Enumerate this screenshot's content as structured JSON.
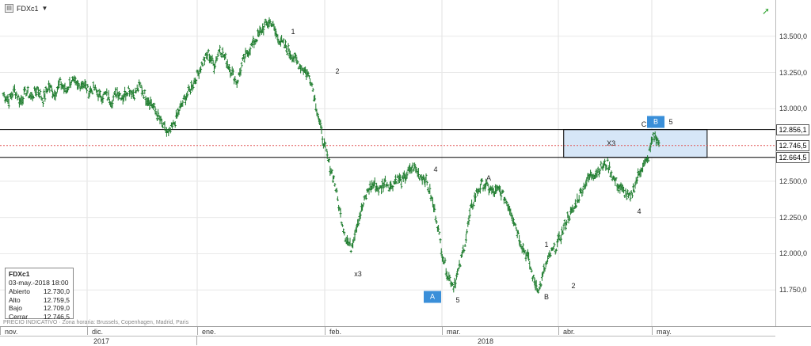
{
  "header": {
    "symbol": "FDXc1",
    "symbol_icon": "chart-icon",
    "trend_icon": "trend-up-icon"
  },
  "info_box": {
    "symbol": "FDXc1",
    "datetime": "03-may.-2018 18:00",
    "rows": [
      {
        "label": "Abierto",
        "value": "12.730,0"
      },
      {
        "label": "Alto",
        "value": "12.759,5"
      },
      {
        "label": "Bajo",
        "value": "12.709,0"
      },
      {
        "label": "Cerrar",
        "value": "12.746,5"
      }
    ]
  },
  "footer_note": "PRECIO INDICATIVO · Zona horaria: Brussels, Copenhagen, Madrid, Paris",
  "chart_data": {
    "type": "line",
    "series_style": "ohlc-bars",
    "x_axis": {
      "months": [
        "nov.",
        "dic.",
        "ene.",
        "feb.",
        "mar.",
        "abr.",
        "may."
      ],
      "years": [
        "2017",
        "2018"
      ]
    },
    "y_axis": {
      "ylim": [
        11500,
        13750
      ],
      "ticks": [
        "13.500,0",
        "13.250,0",
        "13.000,0",
        "12.500,0",
        "12.250,0",
        "12.000,0",
        "11.750,0"
      ],
      "tick_values": [
        13500,
        13250,
        13000,
        12500,
        12250,
        12000,
        11750
      ],
      "highlighted": [
        {
          "value": 12856.1,
          "label": "12.856,1"
        },
        {
          "value": 12746.5,
          "label": "12.746,5"
        },
        {
          "value": 12664.5,
          "label": "12.664,5"
        }
      ]
    },
    "horizontal_lines": [
      {
        "value": 12856.1,
        "style": "solid",
        "color": "#000000"
      },
      {
        "value": 12664.5,
        "style": "solid",
        "color": "#000000"
      },
      {
        "value": 12746.5,
        "style": "dotted",
        "color": "#e05050"
      }
    ],
    "zone": {
      "label": "X3",
      "y_top": 12856.1,
      "y_bottom": 12664.5,
      "x_start": 0.727,
      "x_end": 0.912,
      "fill": "#d6e6f7"
    },
    "series": [
      {
        "values": [
          13100,
          13060,
          13130,
          13050,
          13120,
          13080,
          13140,
          13060,
          13160,
          13100,
          13180,
          13120,
          13200,
          13150,
          13180,
          13120,
          13140,
          13080,
          13100,
          13050,
          13120,
          13080,
          13140,
          13100,
          13160,
          13080,
          13040,
          12960,
          12880,
          12820,
          12900,
          13000,
          13080,
          13150,
          13230,
          13320,
          13380,
          13300,
          13420,
          13340,
          13260,
          13180,
          13320,
          13400,
          13460,
          13520,
          13580,
          13600,
          13500,
          13450,
          13400,
          13350,
          13300,
          13260,
          13200,
          13000,
          12800,
          12640,
          12520,
          12300,
          12120,
          12040,
          12200,
          12320,
          12440,
          12480,
          12440,
          12500,
          12460,
          12520,
          12500,
          12560,
          12600,
          12540,
          12520,
          12400,
          12240,
          12000,
          11850,
          11780,
          11900,
          12080,
          12300,
          12420,
          12480,
          12460,
          12420,
          12440,
          12380,
          12300,
          12180,
          12050,
          11980,
          11820,
          11750,
          11900,
          12000,
          12050,
          12140,
          12250,
          12300,
          12400,
          12480,
          12540,
          12560,
          12600,
          12620,
          12520,
          12460,
          12420,
          12380,
          12500,
          12600,
          12640,
          12820,
          12760
        ],
        "color": "#1a7a2a"
      }
    ],
    "wave_labels": [
      {
        "text": "1",
        "x": 370,
        "y": 13530
      },
      {
        "text": "2",
        "x": 426,
        "y": 13260
      },
      {
        "text": "4",
        "x": 550,
        "y": 12580
      },
      {
        "text": "A",
        "x": 617,
        "y": 12520
      },
      {
        "text": "x3",
        "x": 452,
        "y": 11860
      },
      {
        "text": "5",
        "x": 578,
        "y": 11680
      },
      {
        "text": "1",
        "x": 690,
        "y": 12060
      },
      {
        "text": "B",
        "x": 690,
        "y": 11700
      },
      {
        "text": "2",
        "x": 724,
        "y": 11780
      },
      {
        "text": "4",
        "x": 807,
        "y": 12290
      },
      {
        "text": "C",
        "x": 813,
        "y": 12890
      },
      {
        "text": "5",
        "x": 847,
        "y": 12910
      }
    ],
    "badges": [
      {
        "text": "A",
        "x": 546,
        "y": 11700
      },
      {
        "text": "B",
        "x": 828,
        "y": 12910
      }
    ]
  }
}
